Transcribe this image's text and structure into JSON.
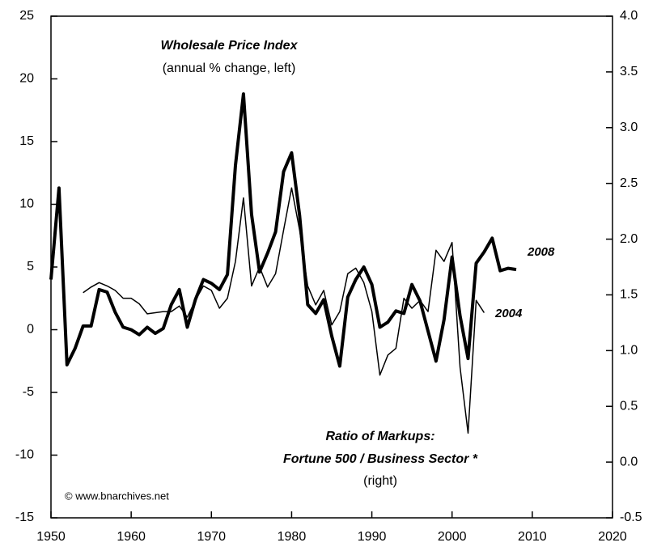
{
  "chart_data": {
    "type": "line",
    "annotations": [
      "Wholesale Price Index",
      "(annual % change, left)",
      "Ratio of Markups:",
      "Fortune 500 / Business Sector *",
      "(right)",
      "© www.bnarchives.net"
    ],
    "x": [
      1950,
      1951,
      1952,
      1953,
      1954,
      1955,
      1956,
      1957,
      1958,
      1959,
      1960,
      1961,
      1962,
      1963,
      1964,
      1965,
      1966,
      1967,
      1968,
      1969,
      1970,
      1971,
      1972,
      1973,
      1974,
      1975,
      1976,
      1977,
      1978,
      1979,
      1980,
      1981,
      1982,
      1983,
      1984,
      1985,
      1986,
      1987,
      1988,
      1989,
      1990,
      1991,
      1992,
      1993,
      1994,
      1995,
      1996,
      1997,
      1998,
      1999,
      2000,
      2001,
      2002,
      2003,
      2004,
      2005,
      2006,
      2007,
      2008
    ],
    "series": [
      {
        "name": "2008",
        "color": "#000000",
        "axis": "y",
        "width": 4,
        "values": [
          4.0,
          11.3,
          -2.8,
          -1.5,
          0.3,
          0.3,
          3.2,
          3.0,
          1.4,
          0.2,
          0.0,
          -0.4,
          0.2,
          -0.3,
          0.1,
          2.0,
          3.2,
          0.2,
          2.4,
          4.0,
          3.7,
          3.2,
          4.4,
          13.1,
          18.8,
          9.2,
          4.6,
          6.1,
          7.8,
          12.6,
          14.1,
          9.1,
          2.0,
          1.3,
          2.4,
          -0.5,
          -2.9,
          2.6,
          4.0,
          5.0,
          3.6,
          0.2,
          0.6,
          1.5,
          1.3,
          3.6,
          2.3,
          -0.1,
          -2.5,
          0.8,
          5.8,
          1.1,
          -2.3,
          5.3,
          6.2,
          7.3,
          4.7,
          4.9,
          4.8
        ]
      },
      {
        "name": "2004",
        "color": "#000000",
        "axis": "y2",
        "width": 1.5,
        "values": [
          null,
          null,
          null,
          null,
          1.52,
          1.57,
          1.61,
          1.58,
          1.54,
          1.47,
          1.47,
          1.42,
          1.33,
          1.34,
          1.35,
          1.35,
          1.4,
          1.3,
          1.45,
          1.58,
          1.54,
          1.38,
          1.47,
          1.8,
          2.37,
          1.58,
          1.75,
          1.57,
          1.69,
          2.08,
          2.46,
          2.08,
          1.58,
          1.41,
          1.54,
          1.23,
          1.35,
          1.69,
          1.74,
          1.61,
          1.35,
          0.78,
          0.96,
          1.02,
          1.47,
          1.38,
          1.45,
          1.35,
          1.9,
          1.8,
          1.97,
          0.85,
          0.26,
          1.45,
          1.34,
          null,
          null,
          null,
          null
        ]
      }
    ],
    "xlim": [
      1950,
      2020
    ],
    "xticks": [
      1950,
      1960,
      1970,
      1980,
      1990,
      2000,
      2010,
      2020
    ],
    "ylim": [
      -15,
      25
    ],
    "yticks": [
      -15,
      -10,
      -5,
      0,
      5,
      10,
      15,
      20,
      25
    ],
    "y2lim": [
      -0.5,
      4.0
    ],
    "y2ticks": [
      {
        "value": -0.5,
        "label": "-0.5"
      },
      {
        "value": 0,
        "label": "0.0"
      },
      {
        "value": 0.5,
        "label": "0.5"
      },
      {
        "value": 1,
        "label": "1.0"
      },
      {
        "value": 1.5,
        "label": "1.5"
      },
      {
        "value": 2,
        "label": "2.0"
      },
      {
        "value": 2.5,
        "label": "2.5"
      },
      {
        "value": 3,
        "label": "3.0"
      },
      {
        "value": 3.5,
        "label": "3.5"
      },
      {
        "value": 4,
        "label": "4.0"
      }
    ],
    "grid": false
  }
}
